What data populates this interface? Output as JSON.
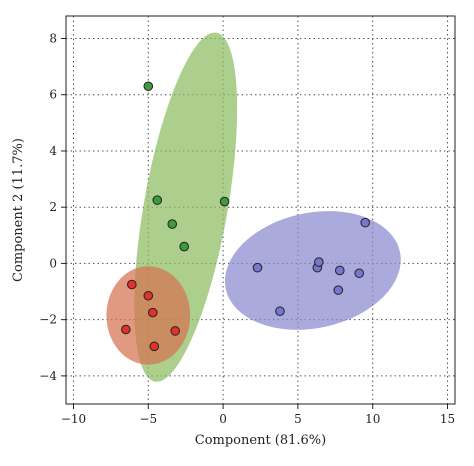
{
  "chart_data": {
    "type": "scatter",
    "title": "",
    "xlabel": "Component (81.6%)",
    "ylabel": "Component 2 (11.7%)",
    "xlim": [
      -10.5,
      15.5
    ],
    "ylim": [
      -5,
      8.8
    ],
    "xticks": [
      -10,
      -5,
      0,
      5,
      10,
      15
    ],
    "yticks": [
      -4,
      -2,
      0,
      2,
      4,
      6,
      8
    ],
    "grid": true,
    "series": [
      {
        "color": "#3e9a3e",
        "ellipse_color": "#8dbd62",
        "points": [
          [
            -5.0,
            6.3
          ],
          [
            -4.4,
            2.25
          ],
          [
            -3.4,
            1.4
          ],
          [
            -2.6,
            0.6
          ],
          [
            0.1,
            2.2
          ]
        ],
        "ellipse": {
          "cx": -2.5,
          "cy": 2.0,
          "rx": 2.8,
          "ry": 6.3,
          "rotation_deg": 10.0
        }
      },
      {
        "color": "#e0312b",
        "ellipse_color": "#d67250",
        "points": [
          [
            -6.1,
            -0.75
          ],
          [
            -5.0,
            -1.15
          ],
          [
            -4.7,
            -1.75
          ],
          [
            -6.5,
            -2.35
          ],
          [
            -3.2,
            -2.4
          ],
          [
            -4.6,
            -2.95
          ]
        ],
        "ellipse": {
          "cx": -5.0,
          "cy": -1.85,
          "rx": 2.8,
          "ry": 1.75,
          "rotation_deg": 0
        }
      },
      {
        "color": "#7777cc",
        "ellipse_color": "#8989cf",
        "points": [
          [
            2.3,
            -0.15
          ],
          [
            3.8,
            -1.7
          ],
          [
            6.3,
            -0.15
          ],
          [
            6.4,
            0.05
          ],
          [
            7.8,
            -0.25
          ],
          [
            7.7,
            -0.95
          ],
          [
            9.1,
            -0.35
          ],
          [
            9.5,
            1.45
          ]
        ],
        "ellipse": {
          "cx": 6.0,
          "cy": -0.25,
          "rx": 5.95,
          "ry": 2.05,
          "rotation_deg": -12.0
        }
      }
    ]
  }
}
